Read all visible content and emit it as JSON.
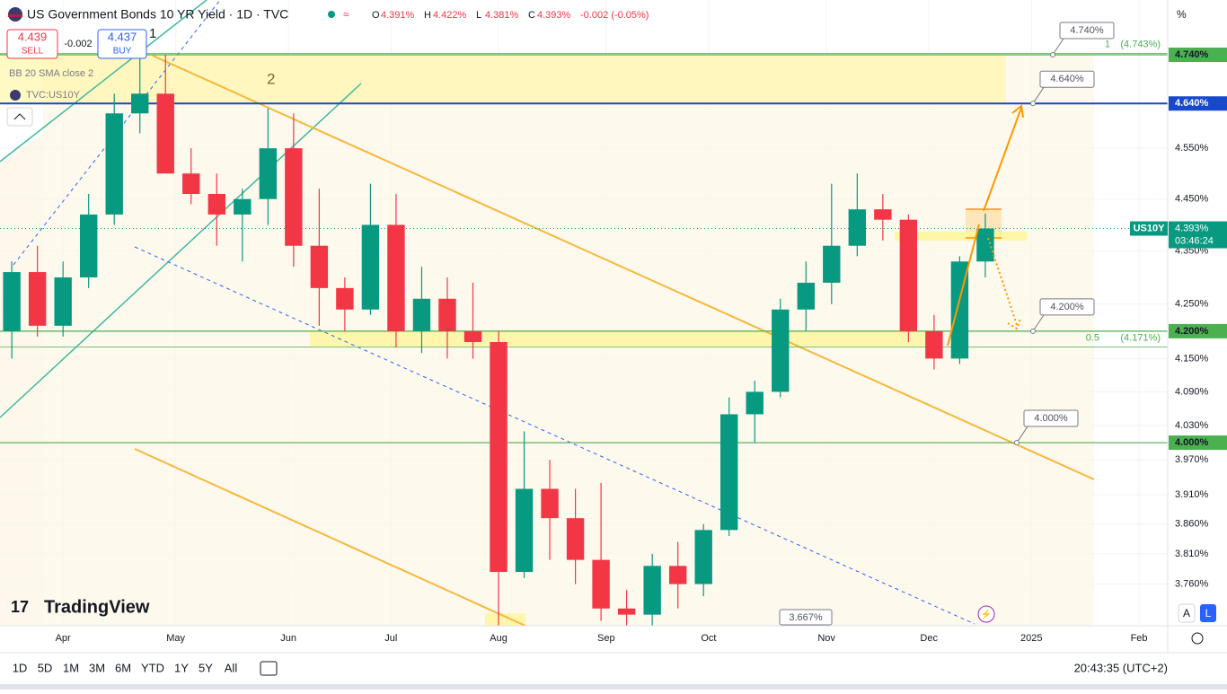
{
  "header": {
    "title": "US Government Bonds 10 YR Yield · 1D · TVC",
    "ohlc": [
      {
        "key": "O",
        "value": "4.391%"
      },
      {
        "key": "H",
        "value": "4.422%"
      },
      {
        "key": "L",
        "value": "4.381%"
      },
      {
        "key": "C",
        "value": "4.393%"
      }
    ],
    "change": "-0.002 (-0.05%)",
    "sell": {
      "price": "4.439",
      "label": "SELL"
    },
    "spread": "-0.002",
    "buy": {
      "price": "4.437",
      "label": "BUY"
    },
    "indicators": [
      "BB 20 SMA close 2",
      "TVC:US10Y"
    ],
    "unit": "%"
  },
  "chart_data": {
    "type": "candlestick",
    "log": true,
    "grid": true,
    "up_color": "#089981",
    "down_color": "#f23645",
    "x": [
      -10,
      -5,
      0,
      5,
      10,
      15,
      20,
      25,
      30,
      35,
      40,
      45,
      50,
      55,
      60,
      65,
      70,
      75,
      80,
      85,
      90,
      95,
      100,
      105,
      110,
      115,
      120,
      125,
      130,
      135,
      140,
      145,
      150,
      155,
      160,
      165,
      170,
      175,
      180
    ],
    "open": [
      4.2,
      4.31,
      4.21,
      4.3,
      4.42,
      4.62,
      4.66,
      4.5,
      4.46,
      4.42,
      4.45,
      4.55,
      4.36,
      4.28,
      4.24,
      4.4,
      4.2,
      4.26,
      4.2,
      4.18,
      3.78,
      3.92,
      3.87,
      3.8,
      3.72,
      3.71,
      3.79,
      3.76,
      3.85,
      4.05,
      4.09,
      4.24,
      4.29,
      4.36,
      4.43,
      4.41,
      4.2,
      4.15,
      4.33
    ],
    "high": [
      4.33,
      4.36,
      4.33,
      4.46,
      4.66,
      4.74,
      4.74,
      4.55,
      4.5,
      4.47,
      4.63,
      4.62,
      4.47,
      4.3,
      4.48,
      4.46,
      4.32,
      4.3,
      4.29,
      4.2,
      4.02,
      3.97,
      3.92,
      3.93,
      3.75,
      3.81,
      3.83,
      3.86,
      4.08,
      4.11,
      4.26,
      4.33,
      4.48,
      4.5,
      4.46,
      4.42,
      4.23,
      4.34,
      4.422
    ],
    "low": [
      4.15,
      4.19,
      4.19,
      4.28,
      4.4,
      4.58,
      4.5,
      4.44,
      4.36,
      4.33,
      4.4,
      4.32,
      4.21,
      4.2,
      4.23,
      4.17,
      4.16,
      4.15,
      4.15,
      3.667,
      3.77,
      3.8,
      3.76,
      3.7,
      3.68,
      3.69,
      3.72,
      3.74,
      3.84,
      4.0,
      4.08,
      4.2,
      4.25,
      4.34,
      4.37,
      4.18,
      4.13,
      4.14,
      4.3
    ],
    "close": [
      4.31,
      4.21,
      4.3,
      4.42,
      4.62,
      4.66,
      4.5,
      4.46,
      4.42,
      4.45,
      4.55,
      4.36,
      4.28,
      4.24,
      4.4,
      4.2,
      4.26,
      4.2,
      4.18,
      3.78,
      3.92,
      3.87,
      3.8,
      3.72,
      3.71,
      3.79,
      3.76,
      3.85,
      4.05,
      4.09,
      4.24,
      4.29,
      4.36,
      4.43,
      4.41,
      4.2,
      4.15,
      4.33,
      4.393
    ],
    "xlim": [
      -12.3,
      215.6
    ],
    "xticks": [
      {
        "value": 0,
        "label": "Apr"
      },
      {
        "value": 22,
        "label": "May"
      },
      {
        "value": 44,
        "label": "Jun"
      },
      {
        "value": 64,
        "label": "Jul"
      },
      {
        "value": 85,
        "label": "Aug"
      },
      {
        "value": 106,
        "label": "Sep"
      },
      {
        "value": 126,
        "label": "Oct"
      },
      {
        "value": 149,
        "label": "Nov"
      },
      {
        "value": 169,
        "label": "Dec"
      },
      {
        "value": 189,
        "label": "2025"
      },
      {
        "value": 210,
        "label": "Feb"
      }
    ],
    "ylim": [
      3.692,
      4.855
    ],
    "yticks": [
      {
        "value": 4.55,
        "label": "4.550%"
      },
      {
        "value": 4.45,
        "label": "4.450%"
      },
      {
        "value": 4.35,
        "label": "4.350%"
      },
      {
        "value": 4.25,
        "label": "4.250%"
      },
      {
        "value": 4.15,
        "label": "4.150%"
      },
      {
        "value": 4.09,
        "label": "4.090%"
      },
      {
        "value": 4.03,
        "label": "4.030%"
      },
      {
        "value": 3.97,
        "label": "3.970%"
      },
      {
        "value": 3.91,
        "label": "3.910%"
      },
      {
        "value": 3.86,
        "label": "3.860%"
      },
      {
        "value": 3.81,
        "label": "3.810%"
      },
      {
        "value": 3.76,
        "label": "3.760%"
      }
    ],
    "levels": [
      {
        "value": 4.74,
        "label": "4.740%",
        "color": "#4caf50"
      },
      {
        "value": 4.64,
        "label": "4.640%",
        "color": "#1848cc"
      },
      {
        "value": 4.2,
        "label": "4.200%",
        "color": "#4caf50"
      },
      {
        "value": 4.0,
        "label": "4.000%",
        "color": "#4caf50"
      }
    ],
    "fib": [
      {
        "level": "1",
        "value": 4.743,
        "label": "(4.743%)"
      },
      {
        "level": "0.5",
        "value": 4.171,
        "label": "(4.171%)"
      }
    ],
    "annotations": [
      "1",
      "2"
    ],
    "low_label": {
      "value": 3.667,
      "label": "3.667%"
    },
    "last": {
      "symbol": "US10Y",
      "value": 4.393,
      "label": "4.393%",
      "countdown": "03:46:24"
    }
  },
  "watermark": "TradingView",
  "toolbar": {
    "ranges": [
      "1D",
      "5D",
      "1M",
      "3M",
      "6M",
      "YTD",
      "1Y",
      "5Y",
      "All"
    ],
    "time": "20:43:35 (UTC+2)",
    "buttons": [
      "A",
      "L"
    ]
  }
}
